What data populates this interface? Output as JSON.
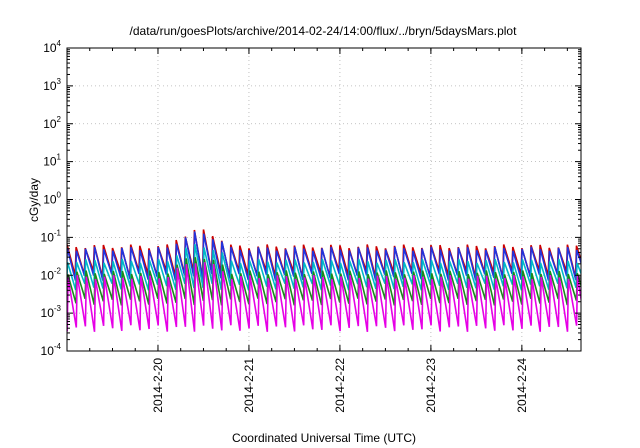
{
  "chart_data": {
    "type": "line",
    "title": "/data/run/goesPlots/archive/2014-02-24/14:00/flux/../bryn/5daysMars.plot",
    "xlabel": "Coordinated Universal Time (UTC)",
    "ylabel": "cGy/day",
    "yscale": "log",
    "ylim": [
      0.0001,
      10000
    ],
    "xlim": [
      -1.0,
      4.65
    ],
    "grid": true,
    "x_tick_labels": [
      "2014-2-20",
      "2014-2-21",
      "2014-2-22",
      "2014-2-23",
      "2014-2-24"
    ],
    "x_tick_values": [
      0,
      1,
      2,
      3,
      4
    ],
    "y_ticks": [
      {
        "base": "10",
        "exp": "-4",
        "value": 0.0001
      },
      {
        "base": "10",
        "exp": "-3",
        "value": 0.001
      },
      {
        "base": "10",
        "exp": "-2",
        "value": 0.01
      },
      {
        "base": "10",
        "exp": "-1",
        "value": 0.1
      },
      {
        "base": "10",
        "exp": "0",
        "value": 1
      },
      {
        "base": "10",
        "exp": "1",
        "value": 10
      },
      {
        "base": "10",
        "exp": "2",
        "value": 100
      },
      {
        "base": "10",
        "exp": "3",
        "value": 1000
      },
      {
        "base": "10",
        "exp": "4",
        "value": 10000
      }
    ],
    "period_days": 0.1,
    "spike_time": 0.45,
    "spike_factor": 2.8,
    "series": [
      {
        "color": "#cc0000",
        "peak": 0.058,
        "trough": 0.011
      },
      {
        "color": "#2233dd",
        "peak": 0.05,
        "trough": 0.009
      },
      {
        "color": "#00b8c8",
        "peak": 0.024,
        "trough": 0.005
      },
      {
        "color": "#1a8a1a",
        "peak": 0.012,
        "trough": 0.002
      },
      {
        "color": "#e600e6",
        "peak": 0.009,
        "trough": 0.0004
      }
    ]
  }
}
